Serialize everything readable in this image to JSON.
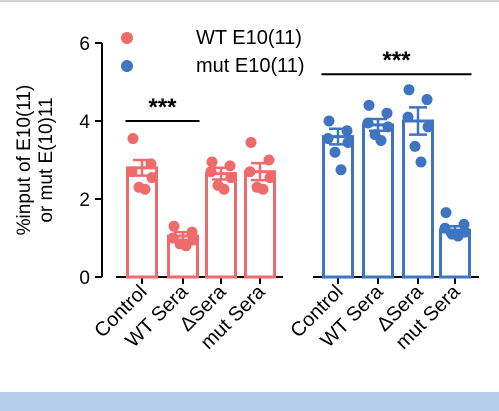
{
  "chart_data": {
    "type": "bar",
    "ylabel": [
      "%input of E10(11)",
      "or mut E(10)11"
    ],
    "ylim": [
      0,
      6
    ],
    "yticks": [
      0,
      2,
      4,
      6
    ],
    "colors": {
      "wt": "#ef6b6b",
      "mut": "#3f74c0"
    },
    "legend": [
      {
        "name": "WT E10(11)",
        "color": "#ef6b6b",
        "position": "top-left"
      },
      {
        "name": "mut E10(11)",
        "color": "#3f74c0",
        "position": "top-left"
      }
    ],
    "groups": [
      {
        "name": "WT E10(11)",
        "color": "#ef6b6b",
        "categories": [
          "Control",
          "WT Sera",
          "ΔSera",
          "mut Sera"
        ],
        "values": [
          2.8,
          1.05,
          2.65,
          2.7
        ],
        "errors": [
          0.2,
          0.1,
          0.15,
          0.22
        ],
        "points": [
          [
            3.55,
            2.9,
            2.7,
            2.55,
            2.3,
            2.25
          ],
          [
            1.3,
            1.15,
            1.0,
            0.95,
            0.85,
            0.8
          ],
          [
            2.95,
            2.85,
            2.7,
            2.55,
            2.35,
            2.25
          ],
          [
            3.45,
            3.0,
            2.7,
            2.55,
            2.3,
            2.25
          ]
        ]
      },
      {
        "name": "mut E10(11)",
        "color": "#3f74c0",
        "categories": [
          "Control",
          "WT Sera",
          "ΔSera",
          "mut Sera"
        ],
        "values": [
          3.6,
          3.9,
          4.0,
          1.2
        ],
        "errors": [
          0.2,
          0.15,
          0.35,
          0.1
        ],
        "points": [
          [
            4.0,
            3.75,
            3.55,
            3.45,
            3.2,
            2.75
          ],
          [
            4.4,
            4.2,
            3.95,
            3.85,
            3.65,
            3.5
          ],
          [
            4.8,
            4.55,
            4.1,
            3.85,
            3.35,
            2.95
          ],
          [
            1.65,
            1.35,
            1.25,
            1.15,
            1.1,
            1.05
          ]
        ]
      }
    ],
    "significance": [
      {
        "label": "***",
        "group": 0,
        "from": 0,
        "to": 1,
        "y": 4.0
      },
      {
        "label": "***",
        "group": 1,
        "from": 0,
        "to": 3,
        "y": 5.2
      }
    ]
  }
}
